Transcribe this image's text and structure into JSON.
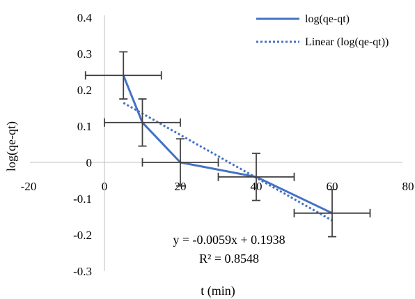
{
  "chart_data": {
    "type": "line",
    "xlabel": "t (min)",
    "ylabel": "log(qe-qt)",
    "xlim": [
      -20,
      80
    ],
    "ylim": [
      -0.3,
      0.4
    ],
    "x_ticks": [
      -20,
      0,
      20,
      40,
      60,
      80
    ],
    "x_tick_labels": [
      "-20",
      "0",
      "20",
      "40",
      "60",
      "80"
    ],
    "y_ticks": [
      0.4,
      0.3,
      0.2,
      0.1,
      0,
      -0.1,
      -0.2,
      -0.3
    ],
    "y_tick_labels": [
      "0.4",
      "0.3",
      "0.2",
      "0.1",
      "0",
      "-0.1",
      "-0.2",
      "-0.3"
    ],
    "grid": false,
    "legend_position": "top-right",
    "series": [
      {
        "name": "log(qe-qt)",
        "style": "solid",
        "color": "#4472C4",
        "x": [
          5,
          10,
          20,
          40,
          60
        ],
        "y": [
          0.24,
          0.11,
          0.0,
          -0.04,
          -0.14
        ],
        "error_y": [
          0.065,
          0.065,
          0.065,
          0.065,
          0.065
        ],
        "error_x": [
          10,
          10,
          10,
          10,
          10
        ]
      },
      {
        "name": "Linear (log(qe-qt))",
        "style": "dotted",
        "color": "#4472C4",
        "slope": -0.0059,
        "intercept": 0.1938,
        "x_range": [
          5,
          60
        ]
      }
    ],
    "equation": "y = -0.0059x + 0.1938",
    "r_squared": "R² = 0.8548",
    "error_bar_color": "#404040"
  }
}
